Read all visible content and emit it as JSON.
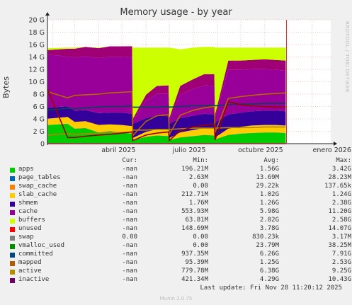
{
  "chart_data": {
    "type": "area",
    "title": "Memory usage - by year",
    "ylabel": "Bytes",
    "side_text": "RRDTOOL / TOBI OETIKER",
    "ylim": [
      0,
      20
    ],
    "y_unit": "G",
    "y_ticks": [
      "0",
      "2 G",
      "4 G",
      "6 G",
      "8 G",
      "10 G",
      "12 G",
      "14 G",
      "16 G",
      "18 G",
      "20 G"
    ],
    "x_ticks": [
      "abril 2025",
      "julio 2025",
      "octubre 2025",
      "enero 2026"
    ],
    "x_dates": [
      "2025-01-25",
      "2025-11-28"
    ],
    "x_samples": [
      "2025-01-25",
      "2025-02-20",
      "2025-03-01",
      "2025-03-15",
      "2025-04-01",
      "2025-04-15",
      "2025-05-01",
      "2025-05-14",
      "2025-05-15",
      "2025-06-01",
      "2025-06-15",
      "2025-06-30",
      "2025-07-01",
      "2025-07-15",
      "2025-08-01",
      "2025-08-15",
      "2025-08-28",
      "2025-08-29",
      "2025-09-15",
      "2025-10-01",
      "2025-10-15",
      "2025-11-01",
      "2025-11-15",
      "2025-11-28"
    ],
    "stack": [
      {
        "name": "apps",
        "color": "#00cc00",
        "values": [
          3.0,
          3.2,
          2.4,
          2.5,
          1.8,
          2.0,
          1.8,
          1.6,
          0.6,
          1.1,
          1.3,
          1.2,
          0.6,
          1.0,
          1.2,
          1.4,
          1.3,
          0.7,
          1.4,
          1.6,
          1.7,
          1.8,
          1.8,
          1.7
        ]
      },
      {
        "name": "page_tables",
        "color": "#0066b3",
        "values": [
          0.02,
          0.02,
          0.02,
          0.02,
          0.02,
          0.02,
          0.02,
          0.02,
          0.01,
          0.02,
          0.02,
          0.02,
          0.01,
          0.02,
          0.02,
          0.02,
          0.02,
          0.01,
          0.02,
          0.02,
          0.02,
          0.02,
          0.02,
          0.02
        ]
      },
      {
        "name": "swap_cache",
        "color": "#ff8000",
        "values": [
          0,
          0,
          0,
          0,
          0,
          0,
          0,
          0,
          0,
          0,
          0,
          0,
          0,
          0,
          0,
          0,
          0,
          0,
          0,
          0,
          0,
          0,
          0,
          0
        ]
      },
      {
        "name": "slab_cache",
        "color": "#ffcc00",
        "values": [
          1.0,
          1.1,
          1.1,
          1.1,
          1.2,
          1.1,
          1.2,
          1.2,
          0.3,
          0.8,
          1.0,
          1.0,
          0.3,
          0.8,
          1.0,
          1.1,
          1.1,
          0.3,
          1.0,
          1.1,
          1.2,
          1.2,
          1.2,
          1.2
        ]
      },
      {
        "name": "shmem",
        "color": "#330099",
        "values": [
          1.8,
          1.7,
          1.8,
          1.8,
          1.9,
          1.9,
          2.0,
          2.0,
          2.3,
          2.2,
          2.2,
          2.2,
          2.3,
          2.3,
          2.3,
          2.3,
          2.3,
          2.4,
          2.3,
          2.3,
          2.3,
          2.3,
          2.3,
          2.3
        ]
      },
      {
        "name": "cache",
        "color": "#990099",
        "values": [
          8.6,
          8.0,
          8.6,
          8.7,
          8.9,
          9.0,
          9.0,
          9.1,
          0.4,
          2.8,
          3.5,
          3.6,
          0.6,
          3.8,
          4.3,
          4.6,
          4.6,
          0.9,
          7.2,
          6.9,
          6.8,
          6.7,
          6.6,
          6.6
        ]
      },
      {
        "name": "buffers",
        "color": "#a00076",
        "values": [
          0.7,
          1.3,
          1.4,
          1.5,
          1.6,
          1.7,
          1.7,
          1.8,
          0.4,
          1.0,
          1.3,
          1.4,
          0.4,
          1.4,
          1.6,
          1.8,
          1.9,
          0.4,
          1.5,
          1.5,
          1.5,
          1.6,
          1.6,
          1.6
        ]
      },
      {
        "name": "unused",
        "color": "#ccff00",
        "values": [
          0.3,
          0.2,
          0.2,
          0.0,
          0.1,
          0.0,
          0.0,
          0.0,
          11.5,
          7.6,
          6.2,
          6.1,
          11.3,
          5.9,
          5.1,
          4.4,
          4.4,
          10.8,
          2.1,
          2.1,
          2.0,
          1.9,
          2.0,
          2.1
        ]
      }
    ],
    "lines": [
      {
        "name": "swap",
        "color": "#ff0000",
        "values": [
          0,
          0,
          0,
          0,
          0,
          0,
          0,
          0,
          0,
          0,
          0,
          0,
          0,
          0,
          0,
          0,
          0,
          0,
          0,
          0,
          0,
          0,
          0,
          0
        ]
      },
      {
        "name": "vmalloc_used",
        "color": "#ff6d6d",
        "values": [
          0.02,
          0.02,
          0.02,
          0.02,
          0.02,
          0.02,
          0.02,
          0.02,
          0.02,
          0.02,
          0.02,
          0.02,
          0.02,
          0.02,
          0.02,
          0.02,
          0.02,
          0.02,
          0.02,
          0.02,
          0.02,
          0.02,
          0.02,
          0.02
        ]
      },
      {
        "name": "committed",
        "color": "#00455c",
        "values": [
          5.4,
          5.7,
          5.6,
          5.8,
          5.9,
          6.0,
          6.0,
          6.1,
          5.9,
          5.9,
          5.9,
          6.0,
          5.9,
          6.0,
          6.1,
          6.1,
          6.2,
          6.1,
          6.3,
          6.4,
          6.4,
          6.5,
          6.5,
          6.5
        ]
      },
      {
        "name": "mapped",
        "color": "#b4850d",
        "values": [
          1.4,
          1.6,
          1.5,
          1.6,
          1.7,
          1.8,
          1.8,
          1.9,
          2.2,
          2.2,
          2.3,
          2.3,
          2.3,
          2.4,
          2.5,
          2.5,
          2.5,
          2.5,
          2.6,
          2.6,
          2.6,
          2.7,
          2.7,
          2.7
        ]
      },
      {
        "name": "active",
        "color": "#b36a00",
        "values": [
          8.4,
          7.4,
          7.8,
          7.9,
          8.0,
          8.2,
          8.3,
          8.4,
          1.3,
          3.6,
          4.5,
          4.7,
          1.5,
          4.6,
          5.4,
          5.8,
          6.0,
          1.8,
          7.3,
          7.6,
          7.8,
          8.0,
          8.1,
          8.2
        ]
      },
      {
        "name": "inactive",
        "color": "#990000",
        "values": [
          8.8,
          1.0,
          1.0,
          1.2,
          1.4,
          1.5,
          1.7,
          1.9,
          0.5,
          1.4,
          1.7,
          1.9,
          0.5,
          2.1,
          2.7,
          3.0,
          3.1,
          0.6,
          6.8,
          6.3,
          6.1,
          6.0,
          5.9,
          5.9
        ]
      }
    ],
    "grid": true
  },
  "legend": {
    "headers": {
      "cur": "Cur:",
      "min": "Min:",
      "avg": "Avg:",
      "max": "Max:"
    },
    "rows": [
      {
        "label": "apps",
        "color": "#00cc00",
        "cur": "-nan",
        "min": "196.21M",
        "avg": "1.56G",
        "max": "3.42G"
      },
      {
        "label": "page_tables",
        "color": "#0066b3",
        "cur": "-nan",
        "min": "2.63M",
        "avg": "13.69M",
        "max": "28.23M"
      },
      {
        "label": "swap_cache",
        "color": "#ff8000",
        "cur": "-nan",
        "min": "0.00",
        "avg": "29.22k",
        "max": "137.65k"
      },
      {
        "label": "slab_cache",
        "color": "#ffcc00",
        "cur": "-nan",
        "min": "212.71M",
        "avg": "1.02G",
        "max": "1.24G"
      },
      {
        "label": "shmem",
        "color": "#330099",
        "cur": "-nan",
        "min": "1.76M",
        "avg": "1.26G",
        "max": "2.38G"
      },
      {
        "label": "cache",
        "color": "#990099",
        "cur": "-nan",
        "min": "553.93M",
        "avg": "5.98G",
        "max": "11.20G"
      },
      {
        "label": "buffers",
        "color": "#ccff00",
        "cur": "-nan",
        "min": "63.81M",
        "avg": "2.02G",
        "max": "2.58G"
      },
      {
        "label": "unused",
        "color": "#ff0000",
        "cur": "-nan",
        "min": "148.69M",
        "avg": "3.78G",
        "max": "14.07G"
      },
      {
        "label": "swap",
        "color": "#808080",
        "cur": "0.00",
        "min": "0.00",
        "avg": "830.23k",
        "max": "3.17M"
      },
      {
        "label": "vmalloc_used",
        "color": "#008f00",
        "cur": "-nan",
        "min": "0.00",
        "avg": "23.79M",
        "max": "38.25M"
      },
      {
        "label": "committed",
        "color": "#00487d",
        "cur": "-nan",
        "min": "937.35M",
        "avg": "6.26G",
        "max": "7.91G"
      },
      {
        "label": "mapped",
        "color": "#b35a00",
        "cur": "-nan",
        "min": "95.39M",
        "avg": "1.25G",
        "max": "2.53G"
      },
      {
        "label": "active",
        "color": "#b38f00",
        "cur": "-nan",
        "min": "779.78M",
        "avg": "6.38G",
        "max": "9.25G"
      },
      {
        "label": "inactive",
        "color": "#6b006b",
        "cur": "-nan",
        "min": "421.34M",
        "avg": "4.29G",
        "max": "10.43G"
      }
    ]
  },
  "footer": "Last update: Fri Nov 28 11:20:12 2025",
  "munin_version": "Munin 2.0.75"
}
